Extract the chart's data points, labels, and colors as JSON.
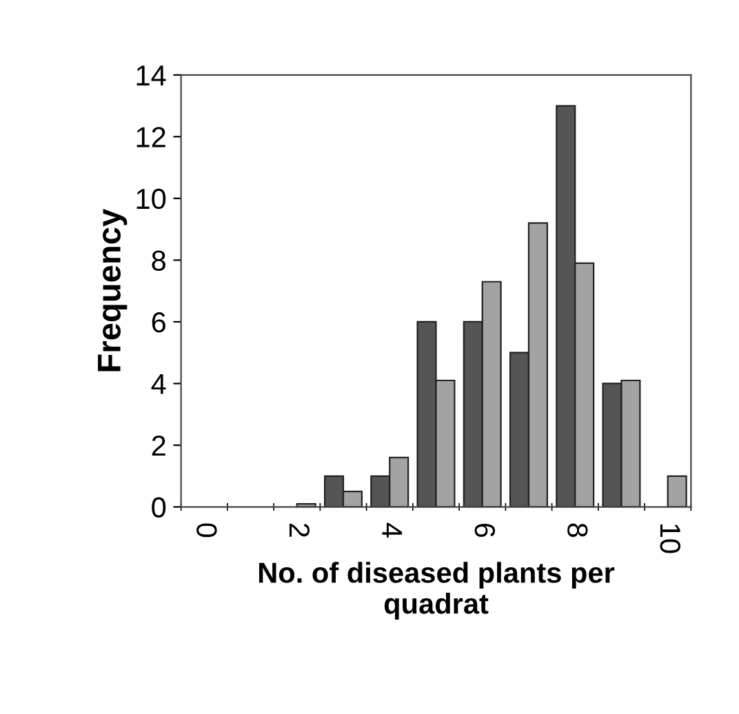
{
  "chart_data": {
    "type": "bar",
    "xlabel": "No. of diseased plants per\nquadrat",
    "ylabel": "Frequency",
    "categories": [
      "0",
      null,
      "2",
      null,
      "4",
      null,
      "6",
      null,
      "8",
      null,
      "10"
    ],
    "series": [
      {
        "color": "#555555",
        "values": [
          0,
          0,
          0,
          1,
          1,
          6,
          6,
          5,
          13,
          4,
          0
        ]
      },
      {
        "color": "#a3a3a3",
        "values": [
          0,
          0,
          0.1,
          0.5,
          1.6,
          4.1,
          7.3,
          9.2,
          7.9,
          4.1,
          1.0
        ]
      }
    ],
    "ylim": [
      0,
      14
    ],
    "yticks": [
      0,
      2,
      4,
      6,
      8,
      10,
      12,
      14
    ],
    "grid": false,
    "legend": false
  }
}
